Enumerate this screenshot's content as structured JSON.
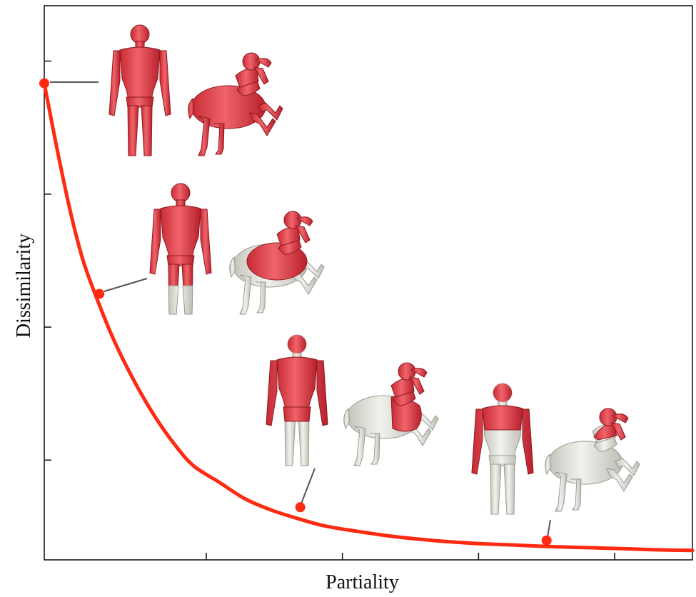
{
  "chart_data": {
    "type": "line",
    "title": "",
    "xlabel": "Partiality",
    "ylabel": "Dissimilarity",
    "xlim": [
      0,
      1
    ],
    "ylim": [
      0,
      1
    ],
    "x_ticks": [
      0.25,
      0.46,
      0.67,
      0.88
    ],
    "y_ticks": [
      0.18,
      0.42,
      0.66,
      0.9
    ],
    "tick_labels_shown": false,
    "grid": false,
    "legend": "none",
    "curve_shape": "exponential-decay",
    "series": [
      {
        "color": "#ff2a12",
        "x": [
          0.0,
          0.02,
          0.04,
          0.06,
          0.085,
          0.11,
          0.14,
          0.17,
          0.2,
          0.23,
          0.27,
          0.31,
          0.35,
          0.39,
          0.43,
          0.48,
          0.54,
          0.6,
          0.66,
          0.72,
          0.78,
          0.84,
          0.9,
          0.95,
          1.0
        ],
        "y": [
          0.86,
          0.74,
          0.63,
          0.54,
          0.46,
          0.39,
          0.32,
          0.26,
          0.21,
          0.17,
          0.14,
          0.11,
          0.09,
          0.075,
          0.062,
          0.052,
          0.042,
          0.035,
          0.03,
          0.027,
          0.024,
          0.022,
          0.02,
          0.018,
          0.017
        ]
      }
    ],
    "highlighted_points": [
      {
        "x": 0.0,
        "y": 0.86
      },
      {
        "x": 0.085,
        "y": 0.48
      },
      {
        "x": 0.395,
        "y": 0.095
      },
      {
        "x": 0.775,
        "y": 0.035
      }
    ],
    "annotations": [
      {
        "kind": "shape-pair",
        "left_shape": "human-model",
        "right_shape": "centaur-model",
        "highlight_extent": "full",
        "highlight_color": "#e8404a",
        "base_color": "#dcdcd6"
      },
      {
        "kind": "shape-pair",
        "left_shape": "human-model",
        "right_shape": "centaur-model",
        "highlight_extent": "upper-body-to-knees",
        "highlight_color": "#e8404a",
        "base_color": "#dcdcd6"
      },
      {
        "kind": "shape-pair",
        "left_shape": "human-model",
        "right_shape": "centaur-model",
        "highlight_extent": "upper-body-to-hips",
        "highlight_color": "#e8404a",
        "base_color": "#dcdcd6"
      },
      {
        "kind": "shape-pair",
        "left_shape": "human-model",
        "right_shape": "centaur-model",
        "highlight_extent": "torso-only",
        "highlight_color": "#e8404a",
        "base_color": "#dcdcd6"
      }
    ]
  }
}
